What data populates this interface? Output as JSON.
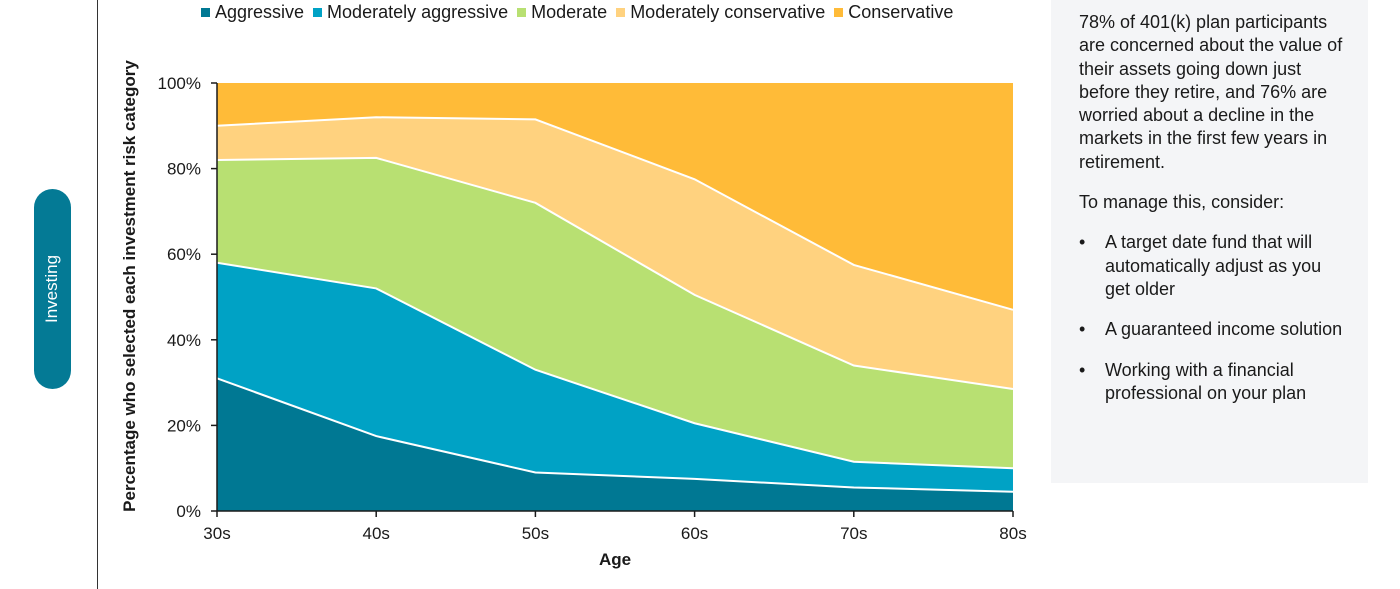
{
  "side_tab": {
    "label": "Investing"
  },
  "legend": [
    {
      "label": "Aggressive",
      "color": "#007893"
    },
    {
      "label": "Moderately aggressive",
      "color": "#00a2c5"
    },
    {
      "label": "Moderate",
      "color": "#b8e072"
    },
    {
      "label": "Moderately conservative",
      "color": "#ffd27f"
    },
    {
      "label": "Conservative",
      "color": "#ffbb38"
    }
  ],
  "chart_data": {
    "type": "area",
    "stacked": true,
    "categories": [
      "30s",
      "40s",
      "50s",
      "60s",
      "70s",
      "80s"
    ],
    "ylabel": "Percentage who selected each investment risk category",
    "xlabel": "Age",
    "ylim": [
      0,
      100
    ],
    "yticks": [
      "0%",
      "20%",
      "40%",
      "60%",
      "80%",
      "100%"
    ],
    "series": [
      {
        "name": "Aggressive",
        "color": "#007893",
        "values": [
          31,
          17.5,
          9,
          7.5,
          5.5,
          4.5
        ]
      },
      {
        "name": "Moderately aggressive",
        "color": "#00a2c5",
        "values": [
          27,
          34.5,
          24,
          13,
          6,
          5.5
        ]
      },
      {
        "name": "Moderate",
        "color": "#b8e072",
        "values": [
          24,
          30.5,
          39,
          30,
          22.5,
          18.5
        ]
      },
      {
        "name": "Moderately conservative",
        "color": "#ffd27f",
        "values": [
          8,
          9.5,
          19.5,
          27,
          23.5,
          18.5
        ]
      },
      {
        "name": "Conservative",
        "color": "#ffbb38",
        "values": [
          10,
          8,
          8.5,
          22.5,
          42.5,
          53
        ]
      }
    ],
    "grid": false,
    "legend_position": "top"
  },
  "callout": {
    "paragraph1": "78% of 401(k) plan participants are concerned about the value of their assets going down just before they retire, and 76% are worried about a decline in the markets in the first few years in retirement.",
    "paragraph2": "To manage this, consider:",
    "bullet_symbol": "•",
    "bullets": [
      "A target date fund that will automatically adjust as you get older",
      "A guaranteed income solution",
      "Working with a financial professional on your plan"
    ]
  }
}
